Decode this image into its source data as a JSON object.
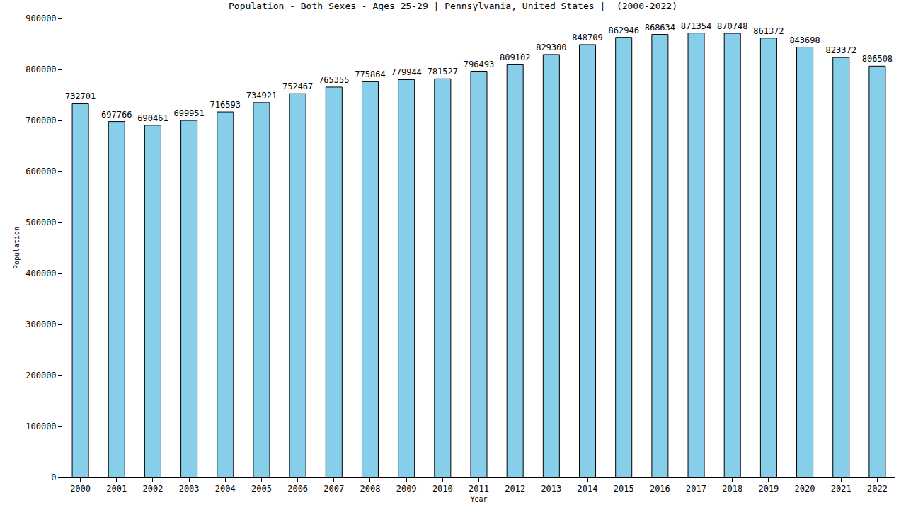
{
  "chart_data": {
    "type": "bar",
    "title": "Population - Both Sexes - Ages 25-29 | Pennsylvania, United States |  (2000-2022)",
    "x_label": "Year",
    "y_label": "Population",
    "categories": [
      "2000",
      "2001",
      "2002",
      "2003",
      "2004",
      "2005",
      "2006",
      "2007",
      "2008",
      "2009",
      "2010",
      "2011",
      "2012",
      "2013",
      "2014",
      "2015",
      "2016",
      "2017",
      "2018",
      "2019",
      "2020",
      "2021",
      "2022"
    ],
    "values": [
      732701,
      697766,
      690461,
      699951,
      716593,
      734921,
      752467,
      765355,
      775864,
      779944,
      781527,
      796493,
      809102,
      829300,
      848709,
      862946,
      868634,
      871354,
      870748,
      861372,
      843698,
      823372,
      806508
    ],
    "color": "#87ceeb",
    "ylim": [
      0,
      900000
    ],
    "yticks": [
      0,
      100000,
      200000,
      300000,
      400000,
      500000,
      600000,
      700000,
      800000,
      900000
    ],
    "grid": false,
    "data_labels": true
  }
}
